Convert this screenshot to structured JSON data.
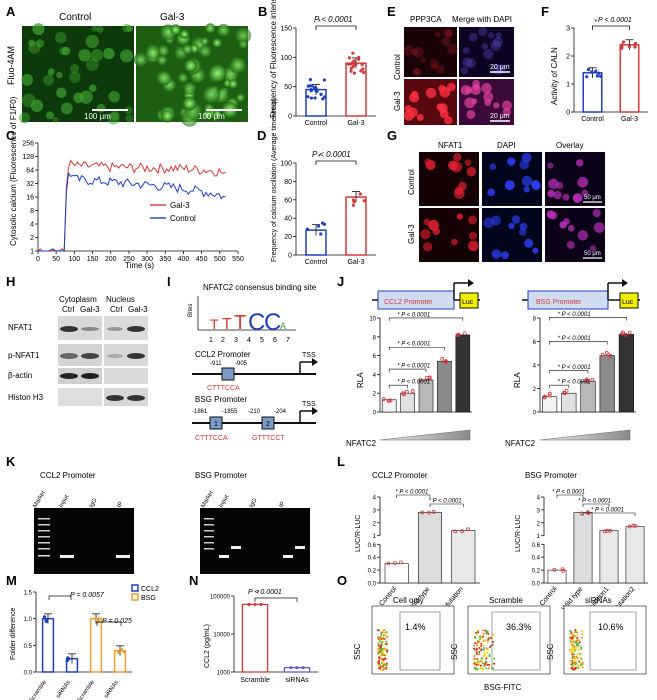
{
  "panels": {
    "A": {
      "letter": "A",
      "control": "Control",
      "gal3": "Gal-3",
      "ylabel": "Fluo-4AM",
      "scale1": "100 μm",
      "scale2": "100 μm"
    },
    "B": {
      "letter": "B",
      "p": "P < 0.0001",
      "ylabel": "Frequency of Fluorescence intensity"
    },
    "C": {
      "letter": "C",
      "ylabel": "Cytosolic calcium (Fluorescence of F1/F0)",
      "xlabel": "Time (s)"
    },
    "D": {
      "letter": "D",
      "p": "P < 0.0001",
      "ylabel": "Frequency of calcium oscillation (Average times/min)"
    },
    "E": {
      "letter": "E",
      "col1": "PPP3CA",
      "col2": "Merge with DAPI",
      "row1": "Control",
      "row2": "Gal-3",
      "scale1": "20 μm",
      "scale2": "20 μm"
    },
    "F": {
      "letter": "F",
      "p": "P < 0.0001",
      "ylabel": "Activity of CALN"
    },
    "G": {
      "letter": "G",
      "col1": "NFAT1",
      "col2": "DAPI",
      "col3": "Overlay",
      "row1": "Control",
      "row2": "Gal-3",
      "scale1": "50 μm",
      "scale2": "50 μm"
    },
    "H": {
      "letter": "H",
      "cyto": "Cytoplasm",
      "nuc": "Nucleus",
      "ctrl1": "Ctrl",
      "gal1": "Gal-3",
      "ctrl2": "Ctrl",
      "gal2": "Gal-3",
      "r1": "NFAT1",
      "r2": "p-NFAT1",
      "r3": "β-actin",
      "r4": "Histon H3"
    },
    "I": {
      "letter": "I",
      "title": "NFATC2 consensus binding site",
      "bits": "Bites",
      "ccl2": "CCL2 Promoter",
      "bsg": "BSG Promoter",
      "tss1": "TSS",
      "tss2": "TSS",
      "c1a": "-911",
      "c1b": "-905",
      "c1seq": "CTTTCCA",
      "b1a": "-1861",
      "b1b": "-1855",
      "b2a": "-210",
      "b2b": "-204",
      "b1seq": "CTTTCCA",
      "b2seq": "GTTTCCT",
      "box1": "1",
      "box2": "2"
    },
    "J": {
      "letter": "J",
      "ccl2": "CCL2 Promoter",
      "bsg": "BSG Promoter",
      "luc1": "Luc",
      "luc2": "Luc",
      "rla1": "RLA",
      "rla2": "RLA",
      "nf1": "NFATC2",
      "nf2": "NFATC2"
    },
    "K": {
      "letter": "K",
      "ccl2": "CCL2 Promoter",
      "bsg": "BSG Promoter",
      "marker1": "Marker",
      "input1": "Input",
      "igg1": "IgG",
      "ip1": "IP",
      "marker2": "Marker",
      "input2": "Input",
      "igg2": "IgG",
      "ip2": "IP"
    },
    "L": {
      "letter": "L",
      "ccl2": "CCL2 Promoter",
      "bsg": "BSG Promoter",
      "ylabel1": "LUC/R-LUC",
      "ylabel2": "LUC/R-LUC"
    },
    "M": {
      "letter": "M",
      "ylabel": "Folder difference",
      "p1": "P = 0.0057",
      "p2": "P = 0.025",
      "leg1": "CCL2",
      "leg2": "BSG"
    },
    "N": {
      "letter": "N",
      "ylabel": "CCL2 (pg/mL)",
      "p": "P < 0.0001"
    },
    "O": {
      "letter": "O",
      "t1": "Cell only",
      "t2": "Scramble",
      "t3": "siRNAs",
      "v1": "1.4%",
      "v2": "36.3%",
      "v3": "10.6%",
      "ssc1": "SSC",
      "ssc2": "SSC",
      "ssc3": "SSC",
      "xlabel": "BSG-FITC"
    }
  },
  "chart_data": [
    {
      "panel": "B",
      "type": "bar",
      "categories": [
        "Control",
        "Gal-3"
      ],
      "values": [
        45,
        90
      ],
      "ylim": [
        0,
        150
      ],
      "yticks": [
        "0",
        "50",
        "100",
        "150"
      ],
      "ylabel": "Frequency of Fluorescence intensity",
      "colors": [
        "#1f3fbf",
        "#d43a3a"
      ]
    },
    {
      "panel": "C",
      "type": "line",
      "xlim": [
        0,
        550
      ],
      "xticks": [
        "0",
        "50",
        "100",
        "150",
        "200",
        "250",
        "300",
        "350",
        "400",
        "450",
        "500",
        "550"
      ],
      "yticks": [
        "1",
        "2",
        "4",
        "8",
        "16",
        "32",
        "64",
        "128",
        "256"
      ],
      "ylabel": "Cytosolic calcium (Fluorescence of F1/F0)",
      "xlabel": "Time (s)",
      "series": [
        {
          "name": "Gal-3",
          "color": "#d43a3a",
          "x": [
            0,
            50,
            75,
            85,
            100,
            200,
            300,
            400,
            500,
            520
          ],
          "y": [
            1,
            1,
            1,
            90,
            80,
            75,
            72,
            70,
            60,
            45
          ]
        },
        {
          "name": "Control",
          "color": "#1f3fbf",
          "x": [
            0,
            50,
            75,
            85,
            100,
            200,
            300,
            400,
            500,
            520
          ],
          "y": [
            1,
            1,
            1,
            60,
            40,
            35,
            30,
            25,
            18,
            14
          ]
        }
      ]
    },
    {
      "panel": "D",
      "type": "bar",
      "categories": [
        "Control",
        "Gal-3"
      ],
      "values": [
        27,
        63
      ],
      "ylim": [
        0,
        100
      ],
      "yticks": [
        "0",
        "20",
        "40",
        "60",
        "80",
        "100"
      ],
      "ylabel": "Frequency of calcium oscillation (Average times/min)",
      "colors": [
        "#1f3fbf",
        "#d43a3a"
      ]
    },
    {
      "panel": "F",
      "type": "bar",
      "categories": [
        "Control",
        "Gal-3"
      ],
      "values": [
        1.4,
        2.4
      ],
      "ylim": [
        0,
        3
      ],
      "yticks": [
        "0",
        "1",
        "2",
        "3"
      ],
      "ylabel": "Activity of CALN",
      "colors": [
        "#1f3fbf",
        "#d43a3a"
      ]
    },
    {
      "panel": "J1",
      "type": "bar",
      "categories": [
        "1",
        "2",
        "3",
        "4",
        "5"
      ],
      "values": [
        1.3,
        2.0,
        3.4,
        5.4,
        8.2
      ],
      "ylim": [
        0,
        10
      ],
      "yticks": [
        "0",
        "2",
        "4",
        "6",
        "8",
        "10"
      ],
      "ylabel": "RLA",
      "xlabel": "NFATC2",
      "p": [
        "P < 0.0001",
        "P < 0.0001",
        "P < 0.0001",
        "P < 0.0001"
      ]
    },
    {
      "panel": "J2",
      "type": "bar",
      "categories": [
        "1",
        "2",
        "3",
        "4",
        "5"
      ],
      "values": [
        1.3,
        1.6,
        2.6,
        4.8,
        6.6
      ],
      "ylim": [
        0,
        8
      ],
      "yticks": [
        "0",
        "2",
        "4",
        "6",
        "8"
      ],
      "ylabel": "RLA",
      "xlabel": "NFATC2",
      "p": [
        "P < 0.0001",
        "P < 0.0001",
        "P < 0.0001",
        "P < 0.0001"
      ]
    },
    {
      "panel": "L1",
      "type": "bar",
      "categories": [
        "Control",
        "Wild type",
        "Mutation"
      ],
      "values": [
        0.3,
        2.8,
        1.4
      ],
      "yticks": [
        "0.0",
        "0.2",
        "0.4",
        "0.6",
        "1",
        "2",
        "3",
        "4"
      ],
      "ylabel": "LUC/R-LUC",
      "p": [
        "P < 0.0001",
        "P < 0.0001"
      ]
    },
    {
      "panel": "L2",
      "type": "bar",
      "categories": [
        "Control",
        "Wild type",
        "Mutation1",
        "Mutation2"
      ],
      "values": [
        0.2,
        2.8,
        1.4,
        1.7
      ],
      "yticks": [
        "0.0",
        "0.2",
        "0.4",
        "0.6",
        "1",
        "2",
        "3",
        "4"
      ],
      "ylabel": "LUC/R-LUC",
      "p": [
        "P < 0.0001",
        "P < 0.0001",
        "P < 0.0001"
      ]
    },
    {
      "panel": "M",
      "type": "bar",
      "categories": [
        "Scramble",
        "siRNAs",
        "Scramble",
        "siRNAs"
      ],
      "values": [
        1.0,
        0.25,
        1.0,
        0.4
      ],
      "ylim": [
        0,
        1.5
      ],
      "yticks": [
        "0.0",
        "0.5",
        "1.0",
        "1.5"
      ],
      "ylabel": "Folder difference",
      "series_colors": [
        "#1f3fbf",
        "#1f3fbf",
        "#e8a030",
        "#e8a030"
      ]
    },
    {
      "panel": "N",
      "type": "bar",
      "categories": [
        "Scramble",
        "siRNAs"
      ],
      "values": [
        60000,
        1300
      ],
      "yticks": [
        "1000",
        "10000",
        "100000"
      ],
      "ylabel": "CCL2 (pg/mL)",
      "colors": [
        "#d43a3a",
        "#6a5acd"
      ]
    }
  ]
}
